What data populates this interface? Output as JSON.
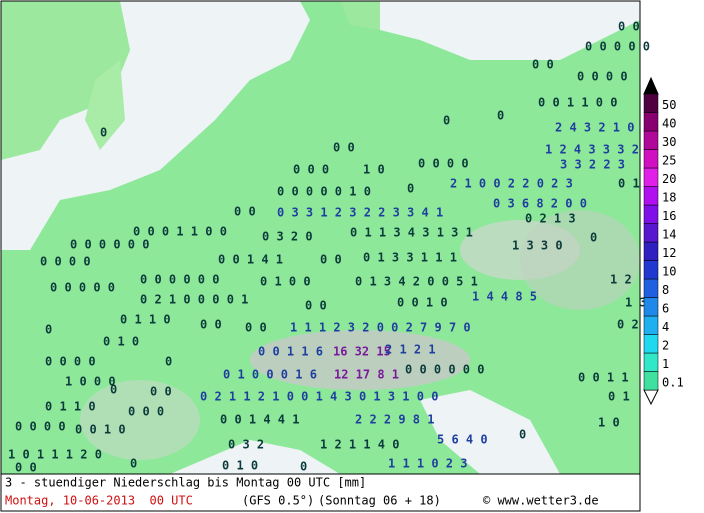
{
  "map": {
    "labels": [
      {
        "text": "0 0",
        "color": "#0b3b3b"
      },
      {
        "text": "0 0 0 0 0",
        "color": "#0b3b3b"
      },
      {
        "text": "0 0",
        "color": "#0b3b3b"
      },
      {
        "text": "0 0 0 0",
        "color": "#0b3b3b"
      },
      {
        "text": "0 0 1 1 0 0",
        "color": "#0b3b3b"
      },
      {
        "text": "0",
        "color": "#0b3b3b"
      },
      {
        "text": "2 4 3 2 1 0",
        "color": "#1f3f9f"
      },
      {
        "text": "0",
        "color": "#0b3b3b"
      },
      {
        "text": "0",
        "color": "#0b3b3b"
      },
      {
        "text": "0 0",
        "color": "#0b3b3b"
      },
      {
        "text": "1 2 4 3 3 3 2",
        "color": "#1f3f9f"
      },
      {
        "text": "3 3 2 2 3",
        "color": "#1f3f9f"
      },
      {
        "text": "0 0 0",
        "color": "#0b3b3b"
      },
      {
        "text": "1 0",
        "color": "#0b3b3b"
      },
      {
        "text": "0 0 0 0",
        "color": "#0b3b3b"
      },
      {
        "text": "2 1 0 0 2 2 0 2 3",
        "color": "#1f3f9f"
      },
      {
        "text": "0 1",
        "color": "#0b3b3b"
      },
      {
        "text": "0 0 0 0 0 1 0",
        "color": "#0b3b3b"
      },
      {
        "text": "0",
        "color": "#0b3b3b"
      },
      {
        "text": "0 3 6 8 2 0 0",
        "color": "#1f3f9f"
      },
      {
        "text": "0 0",
        "color": "#0b3b3b"
      },
      {
        "text": "0 3 3 1 2 3 2 2 3 3 4 1",
        "color": "#1f3f9f"
      },
      {
        "text": "0 2 1 3",
        "color": "#0b3b3b"
      },
      {
        "text": "0 0 0 1 1 0 0",
        "color": "#0b3b3b"
      },
      {
        "text": "0 3 2 0",
        "color": "#0b3b3b"
      },
      {
        "text": "0 1 1 3 4 3 1 3 1",
        "color": "#0b3b3b"
      },
      {
        "text": "1 3 3 0",
        "color": "#0b3b3b"
      },
      {
        "text": "0",
        "color": "#0b3b3b"
      },
      {
        "text": "0 0 0 0 0 0",
        "color": "#0b3b3b"
      },
      {
        "text": "0 0 0 0",
        "color": "#0b3b3b"
      },
      {
        "text": "0 0 1 4 1",
        "color": "#0b3b3b"
      },
      {
        "text": "0 0",
        "color": "#0b3b3b"
      },
      {
        "text": "0 1 3 3 1 1 1",
        "color": "#0b3b3b"
      },
      {
        "text": "0 0 0 0 0",
        "color": "#0b3b3b"
      },
      {
        "text": "0 0 0 0 0 0",
        "color": "#0b3b3b"
      },
      {
        "text": "0 1 0 0",
        "color": "#0b3b3b"
      },
      {
        "text": "0 1 3 4 2 0 0 5 1",
        "color": "#0b3b3b"
      },
      {
        "text": "1 2",
        "color": "#0b3b3b"
      },
      {
        "text": "0 2 1 0 0 0 0 1",
        "color": "#0b3b3b"
      },
      {
        "text": "0 0",
        "color": "#0b3b3b"
      },
      {
        "text": "0 0 1 0",
        "color": "#0b3b3b"
      },
      {
        "text": "1 4 4 8 5",
        "color": "#1f3f9f"
      },
      {
        "text": "1 3",
        "color": "#0b3b3b"
      },
      {
        "text": "0",
        "color": "#0b3b3b"
      },
      {
        "text": "0 1 1 0",
        "color": "#0b3b3b"
      },
      {
        "text": "0 0",
        "color": "#0b3b3b"
      },
      {
        "text": "0 0",
        "color": "#0b3b3b"
      },
      {
        "text": "1 1 1 2 3 2 0 0 2 7 9 7 0",
        "color": "#1f3f9f"
      },
      {
        "text": "0 2",
        "color": "#0b3b3b"
      },
      {
        "text": "0 1 0",
        "color": "#0b3b3b"
      },
      {
        "text": "0 0 1 1 6",
        "color": "#1f3f9f"
      },
      {
        "text": "16 32 15",
        "color": "#7a1a9a"
      },
      {
        "text": "2 1 2 1",
        "color": "#1f3f9f"
      },
      {
        "text": "0 0 0 0",
        "color": "#0b3b3b"
      },
      {
        "text": "0",
        "color": "#0b3b3b"
      },
      {
        "text": "0 1 0 0 0 1 6",
        "color": "#1f3f9f"
      },
      {
        "text": "12 17 8 1",
        "color": "#7a1a9a"
      },
      {
        "text": "0 0 0 0 0 0",
        "color": "#0b3b3b"
      },
      {
        "text": "0 0 1 1",
        "color": "#0b3b3b"
      },
      {
        "text": "1 0 0 0",
        "color": "#0b3b3b"
      },
      {
        "text": "0",
        "color": "#0b3b3b"
      },
      {
        "text": "0 0",
        "color": "#0b3b3b"
      },
      {
        "text": "0 2 1 1 2 1 0 0 1 4 3 0 1 3 1 0 0",
        "color": "#1f3f9f"
      },
      {
        "text": "0 1",
        "color": "#0b3b3b"
      },
      {
        "text": "0 1 1 0",
        "color": "#0b3b3b"
      },
      {
        "text": "0 0 0",
        "color": "#0b3b3b"
      },
      {
        "text": "0 0 1 4 4 1",
        "color": "#0b3b3b"
      },
      {
        "text": "2 2 2 9 8 1",
        "color": "#1f3f9f"
      },
      {
        "text": "0 0 0 0",
        "color": "#0b3b3b"
      },
      {
        "text": "0 0 1 0",
        "color": "#0b3b3b"
      },
      {
        "text": "1 0",
        "color": "#0b3b3b"
      },
      {
        "text": "0 3 2",
        "color": "#0b3b3b"
      },
      {
        "text": "1 2 1 1 4 0",
        "color": "#0b3b3b"
      },
      {
        "text": "5 6 4 0",
        "color": "#1f3f9f"
      },
      {
        "text": "0",
        "color": "#0b3b3b"
      },
      {
        "text": "1 0 1 1 1 2 0",
        "color": "#0b3b3b"
      },
      {
        "text": "0 1 0",
        "color": "#0b3b3b"
      },
      {
        "text": "1 1 1 0 2 3",
        "color": "#1f3f9f"
      },
      {
        "text": "0",
        "color": "#0b3b3b"
      },
      {
        "text": "0 0",
        "color": "#0b3b3b"
      },
      {
        "text": "0",
        "color": "#0b3b3b"
      }
    ]
  },
  "colorbar": {
    "levels": [
      0.1,
      1,
      2,
      4,
      6,
      8,
      10,
      12,
      14,
      16,
      18,
      20,
      25,
      30,
      40,
      50
    ],
    "colors": [
      "#40e0a0",
      "#30e8c8",
      "#20d8f0",
      "#20b0f0",
      "#2088e8",
      "#2060e0",
      "#2038d0",
      "#3020c0",
      "#5818d0",
      "#8010e8",
      "#b010f0",
      "#e020e8",
      "#d010c0",
      "#b00898",
      "#880070",
      "#500040"
    ]
  },
  "footer": {
    "description": "3 - stuendiger Niederschlag bis Montag 00 UTC [mm]",
    "date": "Montag, 10-06-2013  00 UTC",
    "model": "(GFS 0.5°)",
    "run": "(Sonntag 06 + 18)",
    "credit": "© www.wetter3.de"
  }
}
